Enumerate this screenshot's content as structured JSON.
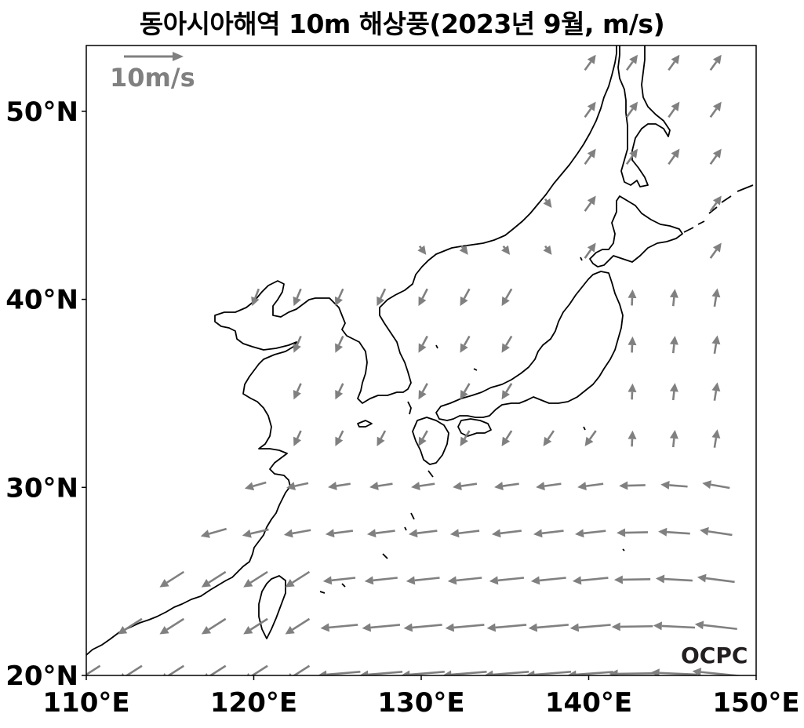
{
  "title": "동아시아해역 10m 해상풍(2023년 9월, m/s)",
  "map": {
    "extent": {
      "lon": [
        110,
        150
      ],
      "lat": [
        20,
        53.5
      ]
    },
    "x_ticks": [
      "110°E",
      "120°E",
      "130°E",
      "140°E",
      "150°E"
    ],
    "x_tick_values": [
      110,
      120,
      130,
      140,
      150
    ],
    "y_ticks": [
      "20°N",
      "30°N",
      "40°N",
      "50°N"
    ],
    "y_tick_values": [
      20,
      30,
      40,
      50
    ],
    "coastline_color": "#000000",
    "arrow_color": "#808080",
    "reference_vector": {
      "label": "10m/s",
      "speed": 10
    },
    "watermark": "OCPC",
    "grid_step_deg": 2.5
  }
}
